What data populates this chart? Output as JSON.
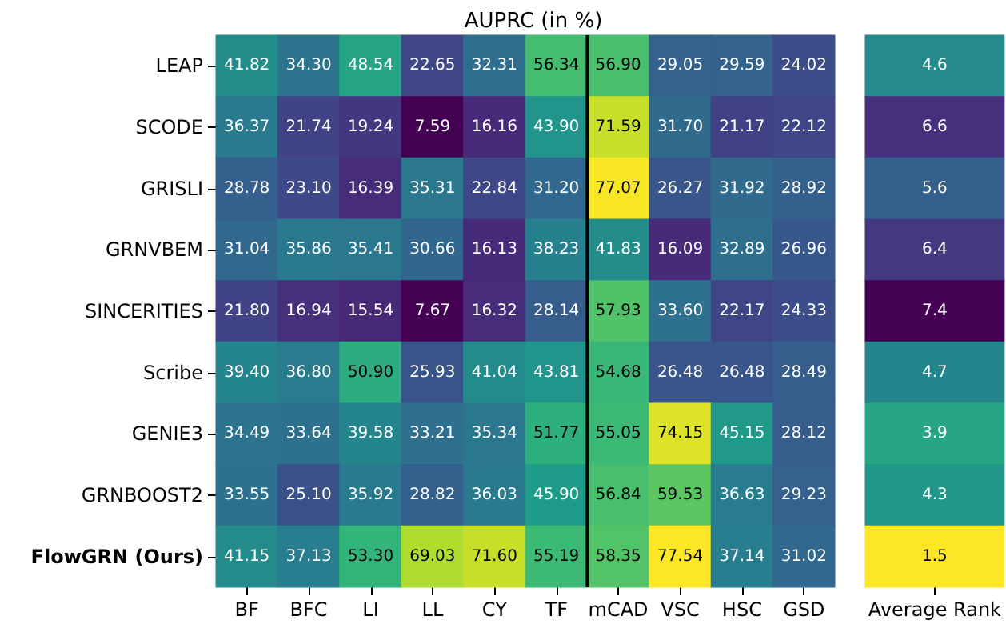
{
  "chart_data": [
    {
      "type": "heatmap",
      "title": "AUPRC (in %)",
      "categories": [
        "BF",
        "BFC",
        "LI",
        "LL",
        "CY",
        "TF",
        "mCAD",
        "VSC",
        "HSC",
        "GSD"
      ],
      "y_categories": [
        "LEAP",
        "SCODE",
        "GRISLI",
        "GRNVBEM",
        "SINCERITIES",
        "Scribe",
        "GENIE3",
        "GRNBOOST2",
        "FlowGRN (Ours)"
      ],
      "cells": [
        [
          41.82,
          34.3,
          48.54,
          22.65,
          32.31,
          56.34,
          56.9,
          29.05,
          29.59,
          24.02
        ],
        [
          36.37,
          21.74,
          19.24,
          7.59,
          16.16,
          43.9,
          71.59,
          31.7,
          21.17,
          22.12
        ],
        [
          28.78,
          23.1,
          16.39,
          35.31,
          22.84,
          31.2,
          77.07,
          26.27,
          31.92,
          28.92
        ],
        [
          31.04,
          35.86,
          35.41,
          30.66,
          16.13,
          38.23,
          41.83,
          16.09,
          32.89,
          26.96
        ],
        [
          21.8,
          16.94,
          15.54,
          7.67,
          16.32,
          28.14,
          57.93,
          33.6,
          22.17,
          24.33
        ],
        [
          39.4,
          36.8,
          50.9,
          25.93,
          41.04,
          43.81,
          54.68,
          26.48,
          26.48,
          28.49
        ],
        [
          34.49,
          33.64,
          39.58,
          33.21,
          35.34,
          51.77,
          55.05,
          74.15,
          45.15,
          28.12
        ],
        [
          33.55,
          25.1,
          35.92,
          28.82,
          36.03,
          45.9,
          56.84,
          59.53,
          36.63,
          29.23
        ],
        [
          41.15,
          37.13,
          53.3,
          69.03,
          71.6,
          55.19,
          58.35,
          77.54,
          37.14,
          31.02
        ]
      ],
      "cell_labels": [
        [
          "41.82",
          "34.30",
          "48.54",
          "22.65",
          "32.31",
          "56.34",
          "56.90",
          "29.05",
          "29.59",
          "24.02"
        ],
        [
          "36.37",
          "21.74",
          "19.24",
          "7.59",
          "16.16",
          "43.90",
          "71.59",
          "31.70",
          "21.17",
          "22.12"
        ],
        [
          "28.78",
          "23.10",
          "16.39",
          "35.31",
          "22.84",
          "31.20",
          "77.07",
          "26.27",
          "31.92",
          "28.92"
        ],
        [
          "31.04",
          "35.86",
          "35.41",
          "30.66",
          "16.13",
          "38.23",
          "41.83",
          "16.09",
          "32.89",
          "26.96"
        ],
        [
          "21.80",
          "16.94",
          "15.54",
          "7.67",
          "16.32",
          "28.14",
          "57.93",
          "33.60",
          "22.17",
          "24.33"
        ],
        [
          "39.40",
          "36.80",
          "50.90",
          "25.93",
          "41.04",
          "43.81",
          "54.68",
          "26.48",
          "26.48",
          "28.49"
        ],
        [
          "34.49",
          "33.64",
          "39.58",
          "33.21",
          "35.34",
          "51.77",
          "55.05",
          "74.15",
          "45.15",
          "28.12"
        ],
        [
          "33.55",
          "25.10",
          "35.92",
          "28.82",
          "36.03",
          "45.90",
          "56.84",
          "59.53",
          "36.63",
          "29.23"
        ],
        [
          "41.15",
          "37.13",
          "53.30",
          "69.03",
          "71.60",
          "55.19",
          "58.35",
          "77.54",
          "37.14",
          "31.02"
        ]
      ]
    },
    {
      "type": "heatmap",
      "categories": [
        "Average Rank"
      ],
      "y_categories": [
        null,
        null,
        null,
        null,
        null,
        null,
        null,
        null,
        null
      ],
      "cells": [
        [
          4.6
        ],
        [
          6.6
        ],
        [
          5.6
        ],
        [
          6.4
        ],
        [
          7.4
        ],
        [
          4.7
        ],
        [
          3.9
        ],
        [
          4.3
        ],
        [
          1.5
        ]
      ],
      "data_labels": true,
      "tick_labels": "x"
    }
  ]
}
